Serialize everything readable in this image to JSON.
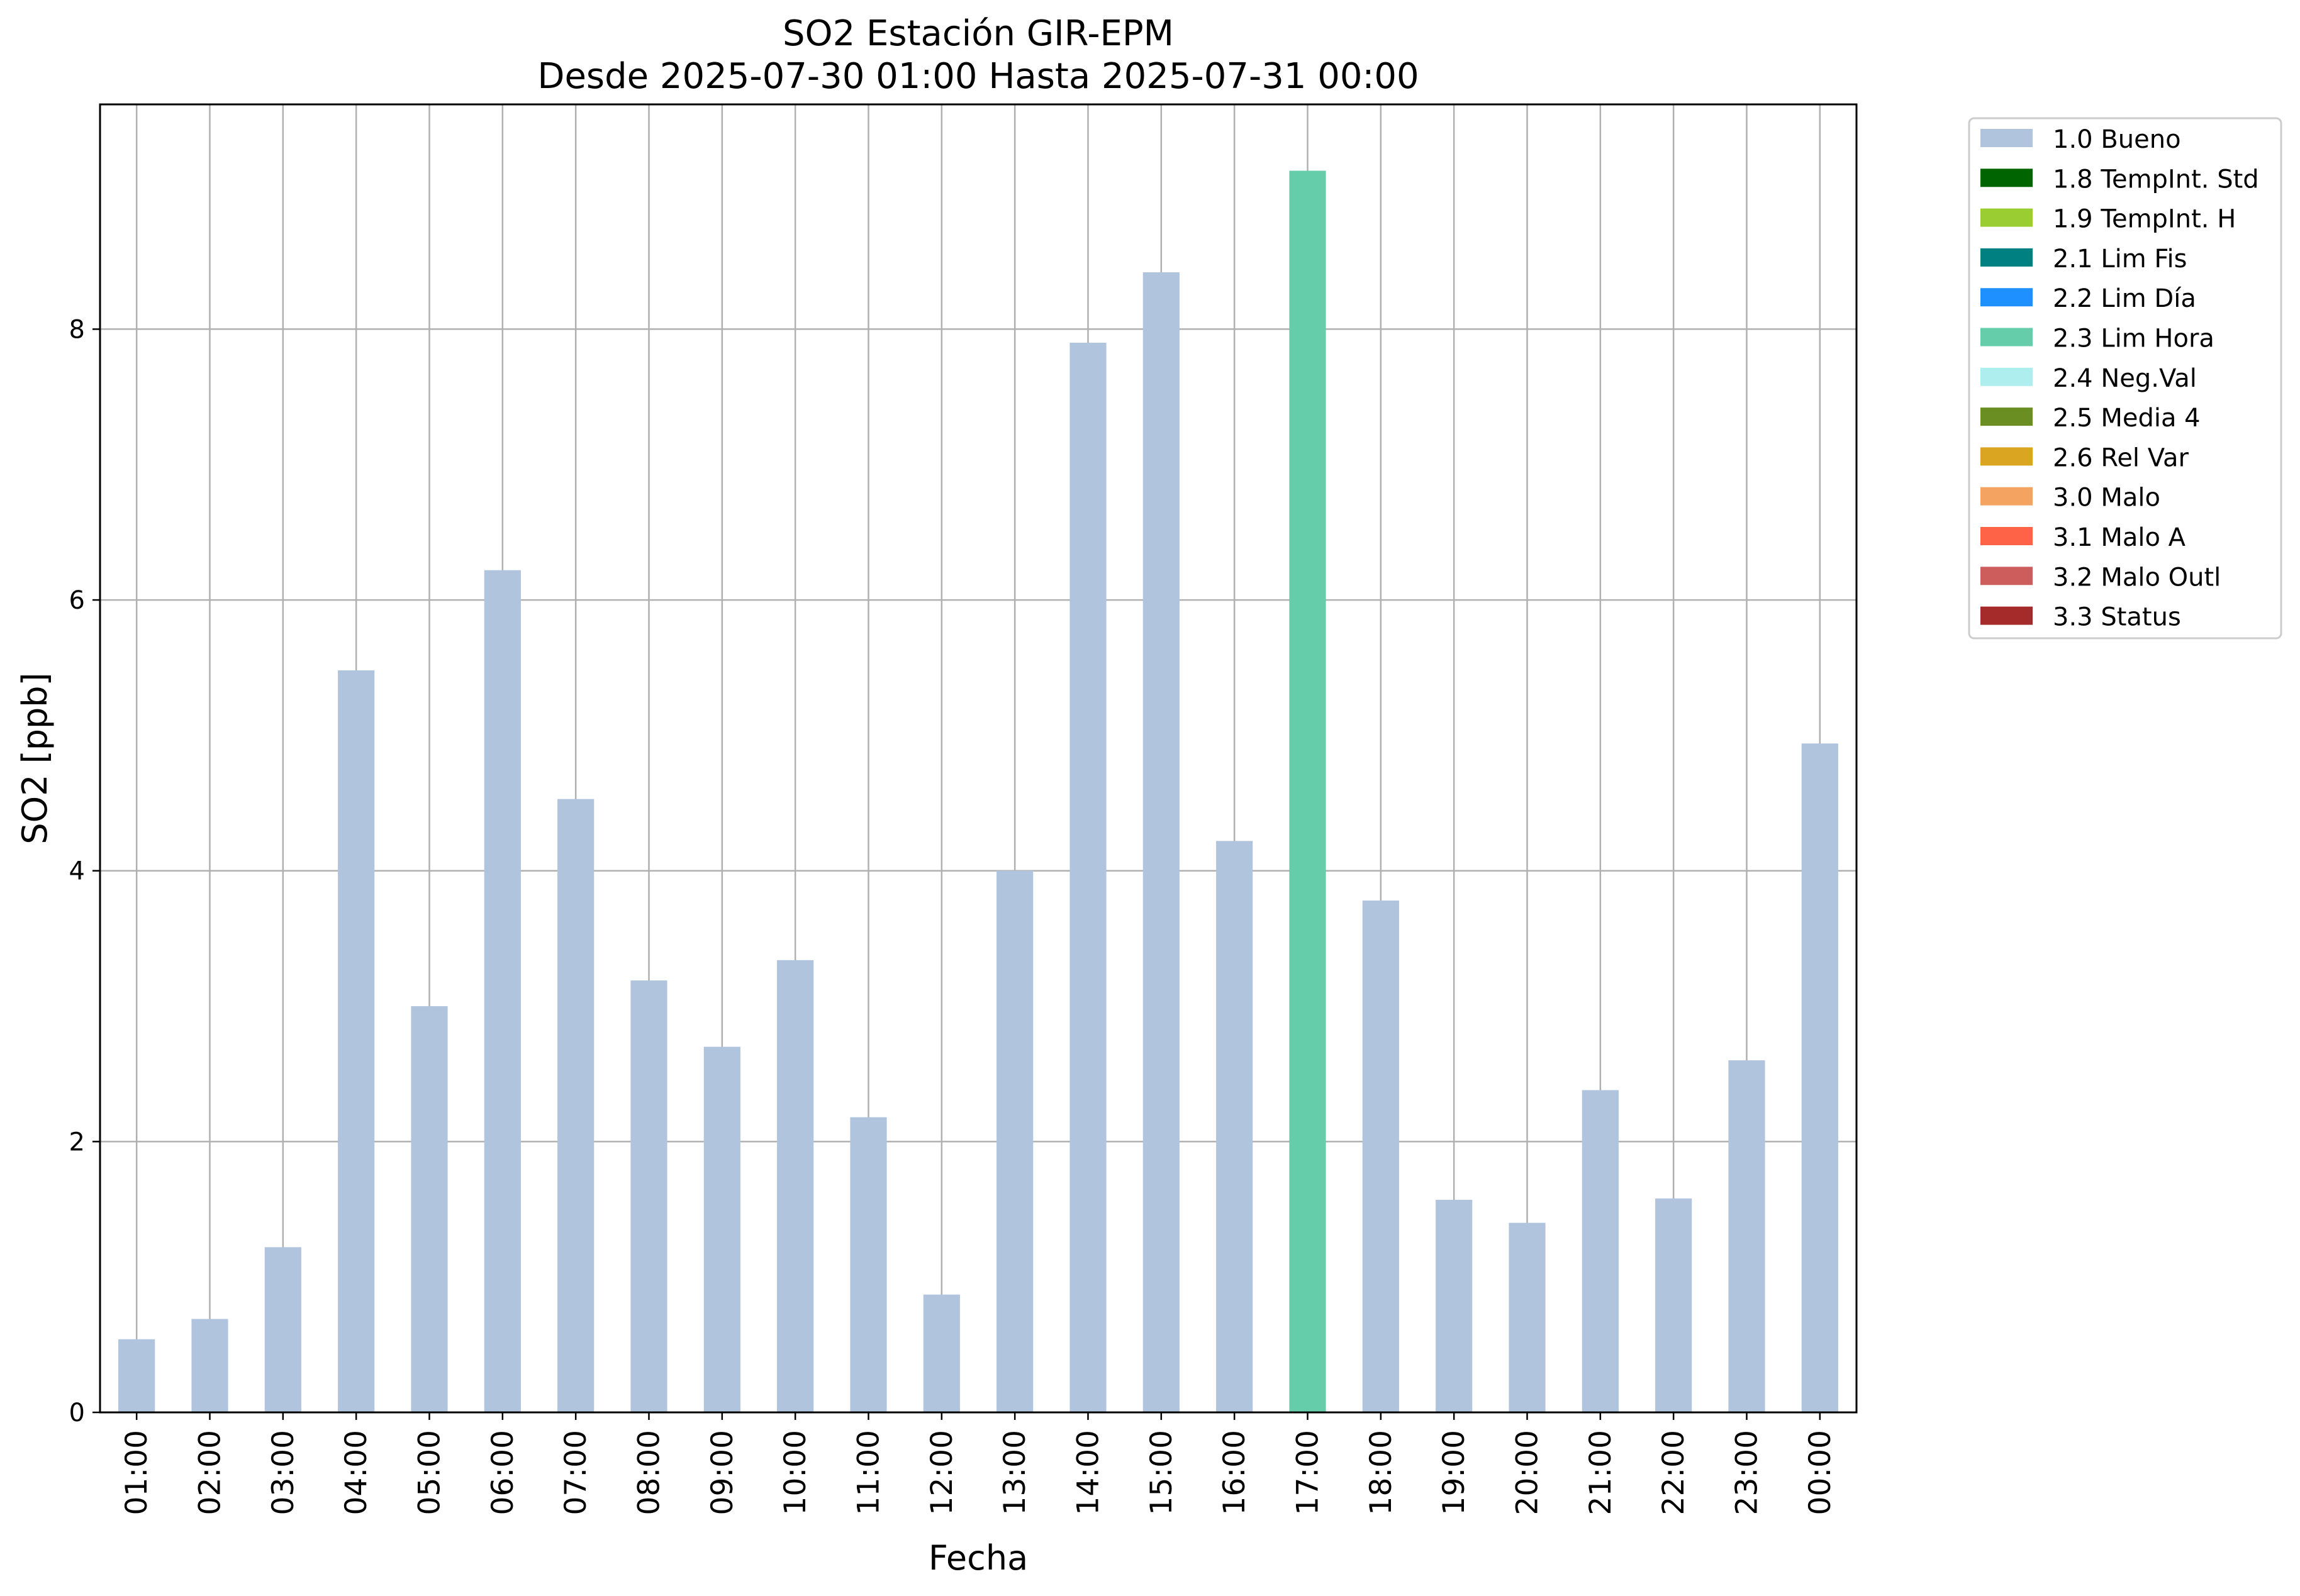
{
  "chart_data": {
    "type": "bar",
    "title": "SO2 Estación GIR-EPM",
    "subtitle": "Desde 2025-07-30 01:00 Hasta 2025-07-31 00:00",
    "xlabel": "Fecha",
    "ylabel": "SO2 [ppb]",
    "ylim": [
      0,
      9.66
    ],
    "yticks": [
      0,
      2,
      4,
      6,
      8
    ],
    "grid": true,
    "legend_position": "outside-top-right",
    "categories": [
      "01:00",
      "02:00",
      "03:00",
      "04:00",
      "05:00",
      "06:00",
      "07:00",
      "08:00",
      "09:00",
      "10:00",
      "11:00",
      "12:00",
      "13:00",
      "14:00",
      "15:00",
      "16:00",
      "17:00",
      "18:00",
      "19:00",
      "20:00",
      "21:00",
      "22:00",
      "23:00",
      "00:00"
    ],
    "values": [
      0.54,
      0.69,
      1.22,
      5.48,
      3.0,
      6.22,
      4.53,
      3.19,
      2.7,
      3.34,
      2.18,
      0.87,
      4.0,
      7.9,
      8.42,
      4.22,
      9.17,
      3.78,
      1.57,
      1.4,
      2.38,
      1.58,
      2.6,
      4.94
    ],
    "flags": [
      "1.0 Bueno",
      "1.0 Bueno",
      "1.0 Bueno",
      "1.0 Bueno",
      "1.0 Bueno",
      "1.0 Bueno",
      "1.0 Bueno",
      "1.0 Bueno",
      "1.0 Bueno",
      "1.0 Bueno",
      "1.0 Bueno",
      "1.0 Bueno",
      "1.0 Bueno",
      "1.0 Bueno",
      "1.0 Bueno",
      "1.0 Bueno",
      "2.3 Lim Hora",
      "1.0 Bueno",
      "1.0 Bueno",
      "1.0 Bueno",
      "1.0 Bueno",
      "1.0 Bueno",
      "1.0 Bueno",
      "1.0 Bueno"
    ],
    "legend": [
      {
        "label": "1.0 Bueno",
        "color": "#b0c4de"
      },
      {
        "label": "1.8 TempInt. Std",
        "color": "#006400"
      },
      {
        "label": "1.9 TempInt. H",
        "color": "#9acd32"
      },
      {
        "label": "2.1 Lim Fis",
        "color": "#008080"
      },
      {
        "label": "2.2 Lim Día",
        "color": "#1e90ff"
      },
      {
        "label": "2.3 Lim Hora",
        "color": "#66cdaa"
      },
      {
        "label": "2.4 Neg.Val",
        "color": "#afeeee"
      },
      {
        "label": "2.5 Media 4",
        "color": "#6b8e23"
      },
      {
        "label": "2.6 Rel Var",
        "color": "#daa520"
      },
      {
        "label": "3.0 Malo",
        "color": "#f4a460"
      },
      {
        "label": "3.1 Malo A",
        "color": "#ff6347"
      },
      {
        "label": "3.2 Malo Outl",
        "color": "#cd5c5c"
      },
      {
        "label": "3.3 Status",
        "color": "#a52a2a"
      }
    ]
  }
}
